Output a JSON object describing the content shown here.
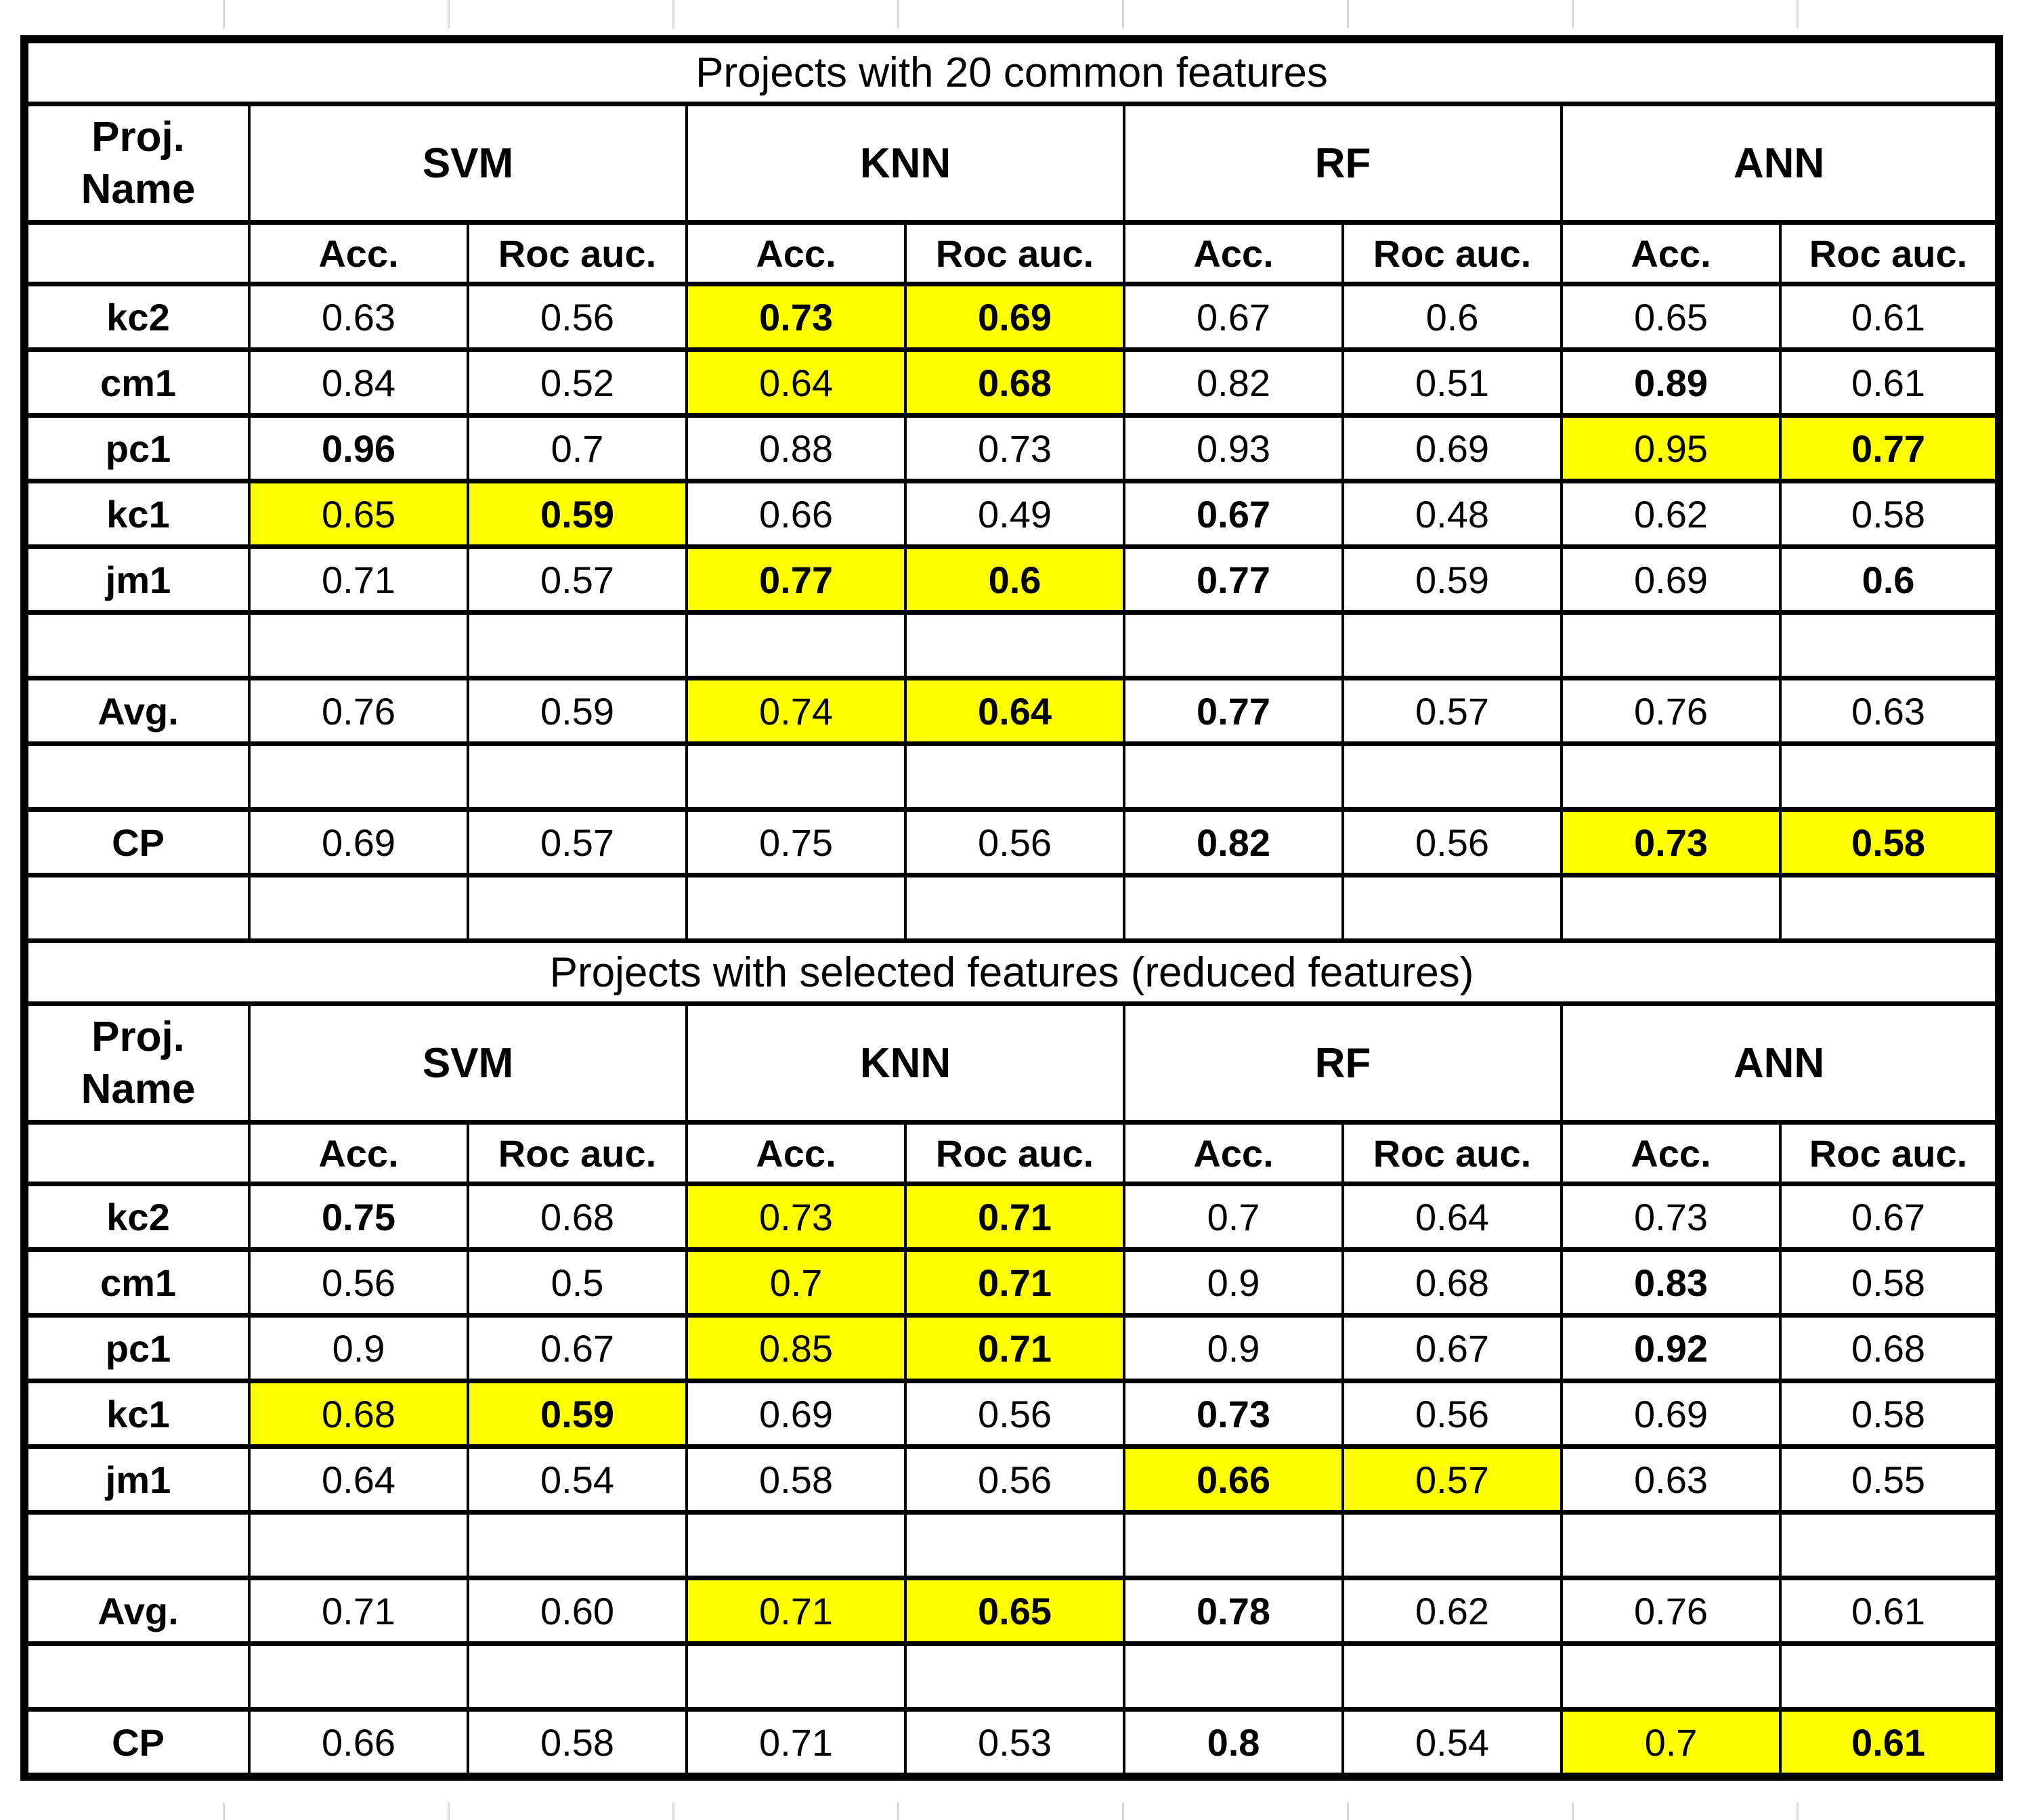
{
  "colors": {
    "highlight": "#ffff00",
    "border": "#000000",
    "gridline": "#d9d9d9",
    "text": "#000000"
  },
  "sections": [
    {
      "title": "Projects with 20 common features",
      "proj_lines": [
        "Proj.",
        "Name"
      ],
      "groups": [
        "SVM",
        "KNN",
        "RF",
        "ANN"
      ],
      "subheaders": [
        "Acc.",
        "Roc auc."
      ],
      "rows": [
        {
          "label": "kc2",
          "cells": [
            {
              "v": "0.63"
            },
            {
              "v": "0.56"
            },
            {
              "v": "0.73",
              "b": 1,
              "y": 1
            },
            {
              "v": "0.69",
              "b": 1,
              "y": 1
            },
            {
              "v": "0.67"
            },
            {
              "v": "0.6"
            },
            {
              "v": "0.65"
            },
            {
              "v": "0.61"
            }
          ]
        },
        {
          "label": "cm1",
          "cells": [
            {
              "v": "0.84"
            },
            {
              "v": "0.52"
            },
            {
              "v": "0.64",
              "y": 1
            },
            {
              "v": "0.68",
              "b": 1,
              "y": 1
            },
            {
              "v": "0.82"
            },
            {
              "v": "0.51"
            },
            {
              "v": "0.89",
              "b": 1
            },
            {
              "v": "0.61"
            }
          ]
        },
        {
          "label": "pc1",
          "cells": [
            {
              "v": "0.96",
              "b": 1
            },
            {
              "v": "0.7"
            },
            {
              "v": "0.88"
            },
            {
              "v": "0.73"
            },
            {
              "v": "0.93"
            },
            {
              "v": "0.69"
            },
            {
              "v": "0.95",
              "y": 1
            },
            {
              "v": "0.77",
              "b": 1,
              "y": 1
            }
          ]
        },
        {
          "label": "kc1",
          "cells": [
            {
              "v": "0.65",
              "y": 1
            },
            {
              "v": "0.59",
              "b": 1,
              "y": 1
            },
            {
              "v": "0.66"
            },
            {
              "v": "0.49"
            },
            {
              "v": "0.67",
              "b": 1
            },
            {
              "v": "0.48"
            },
            {
              "v": "0.62"
            },
            {
              "v": "0.58"
            }
          ]
        },
        {
          "label": "jm1",
          "cells": [
            {
              "v": "0.71"
            },
            {
              "v": "0.57"
            },
            {
              "v": "0.77",
              "b": 1,
              "y": 1
            },
            {
              "v": "0.6",
              "b": 1,
              "y": 1
            },
            {
              "v": "0.77",
              "b": 1
            },
            {
              "v": "0.59"
            },
            {
              "v": "0.69"
            },
            {
              "v": "0.6",
              "b": 1
            }
          ]
        },
        {
          "spacer": true
        },
        {
          "label": "Avg.",
          "cells": [
            {
              "v": "0.76"
            },
            {
              "v": "0.59"
            },
            {
              "v": "0.74",
              "y": 1
            },
            {
              "v": "0.64",
              "b": 1,
              "y": 1
            },
            {
              "v": "0.77",
              "b": 1
            },
            {
              "v": "0.57"
            },
            {
              "v": "0.76"
            },
            {
              "v": "0.63"
            }
          ]
        },
        {
          "spacer": true
        },
        {
          "label": "CP",
          "cells": [
            {
              "v": "0.69"
            },
            {
              "v": "0.57"
            },
            {
              "v": "0.75"
            },
            {
              "v": "0.56"
            },
            {
              "v": "0.82",
              "b": 1
            },
            {
              "v": "0.56"
            },
            {
              "v": "0.73",
              "b": 1,
              "y": 1
            },
            {
              "v": "0.58",
              "b": 1,
              "y": 1
            }
          ]
        },
        {
          "spacer": true
        }
      ]
    },
    {
      "title": "Projects with selected features (reduced features)",
      "proj_lines": [
        "Proj.",
        "Name"
      ],
      "groups": [
        "SVM",
        "KNN",
        "RF",
        "ANN"
      ],
      "subheaders": [
        "Acc.",
        "Roc auc."
      ],
      "rows": [
        {
          "label": "kc2",
          "cells": [
            {
              "v": "0.75",
              "b": 1
            },
            {
              "v": "0.68"
            },
            {
              "v": "0.73",
              "y": 1
            },
            {
              "v": "0.71",
              "b": 1,
              "y": 1
            },
            {
              "v": "0.7"
            },
            {
              "v": "0.64"
            },
            {
              "v": "0.73"
            },
            {
              "v": "0.67"
            }
          ]
        },
        {
          "label": "cm1",
          "cells": [
            {
              "v": "0.56"
            },
            {
              "v": "0.5"
            },
            {
              "v": "0.7",
              "y": 1
            },
            {
              "v": "0.71",
              "b": 1,
              "y": 1
            },
            {
              "v": "0.9"
            },
            {
              "v": "0.68"
            },
            {
              "v": "0.83",
              "b": 1
            },
            {
              "v": "0.58"
            }
          ]
        },
        {
          "label": "pc1",
          "cells": [
            {
              "v": "0.9"
            },
            {
              "v": "0.67"
            },
            {
              "v": "0.85",
              "y": 1
            },
            {
              "v": "0.71",
              "b": 1,
              "y": 1
            },
            {
              "v": "0.9"
            },
            {
              "v": "0.67"
            },
            {
              "v": "0.92",
              "b": 1
            },
            {
              "v": "0.68"
            }
          ]
        },
        {
          "label": "kc1",
          "cells": [
            {
              "v": "0.68",
              "y": 1
            },
            {
              "v": "0.59",
              "b": 1,
              "y": 1
            },
            {
              "v": "0.69"
            },
            {
              "v": "0.56"
            },
            {
              "v": "0.73",
              "b": 1
            },
            {
              "v": "0.56"
            },
            {
              "v": "0.69"
            },
            {
              "v": "0.58"
            }
          ]
        },
        {
          "label": "jm1",
          "cells": [
            {
              "v": "0.64"
            },
            {
              "v": "0.54"
            },
            {
              "v": "0.58"
            },
            {
              "v": "0.56"
            },
            {
              "v": "0.66",
              "b": 1,
              "y": 1
            },
            {
              "v": "0.57",
              "y": 1
            },
            {
              "v": "0.63"
            },
            {
              "v": "0.55"
            }
          ]
        },
        {
          "spacer": true
        },
        {
          "label": "Avg.",
          "cells": [
            {
              "v": "0.71"
            },
            {
              "v": "0.60"
            },
            {
              "v": "0.71",
              "y": 1
            },
            {
              "v": "0.65",
              "b": 1,
              "y": 1
            },
            {
              "v": "0.78",
              "b": 1
            },
            {
              "v": "0.62"
            },
            {
              "v": "0.76"
            },
            {
              "v": "0.61"
            }
          ]
        },
        {
          "spacer": true
        },
        {
          "label": "CP",
          "cells": [
            {
              "v": "0.66"
            },
            {
              "v": "0.58"
            },
            {
              "v": "0.71"
            },
            {
              "v": "0.53"
            },
            {
              "v": "0.8",
              "b": 1
            },
            {
              "v": "0.54"
            },
            {
              "v": "0.7",
              "y": 1
            },
            {
              "v": "0.61",
              "b": 1,
              "y": 1
            }
          ]
        }
      ]
    }
  ]
}
